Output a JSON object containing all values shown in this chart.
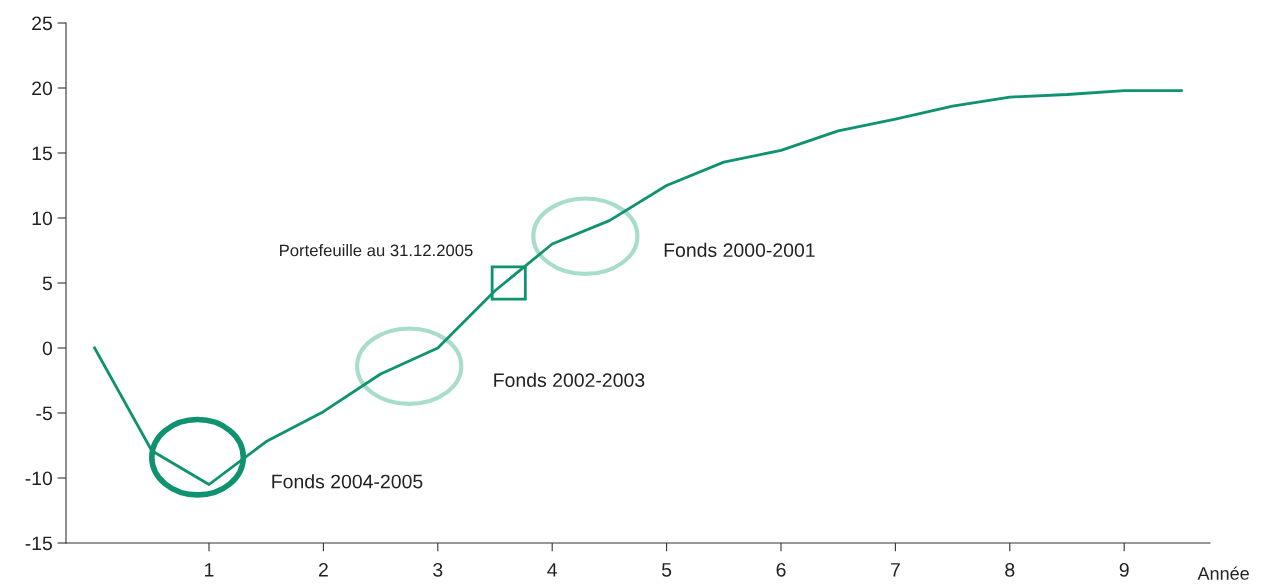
{
  "chart_data": {
    "type": "line",
    "xlabel": "Année",
    "x": [
      0,
      0.5,
      1,
      1.5,
      2,
      2.5,
      3,
      3.5,
      4,
      4.5,
      5,
      5.5,
      6,
      6.5,
      7,
      7.5,
      8,
      8.5,
      9,
      9.5
    ],
    "series": [
      {
        "color": "#0f9270",
        "values": [
          0,
          -7.9,
          -10.5,
          -7.2,
          -4.9,
          -2.0,
          0,
          4.4,
          8.0,
          9.8,
          12.5,
          14.3,
          15.2,
          16.7,
          17.6,
          18.6,
          19.3,
          19.5,
          19.8,
          19.8
        ]
      }
    ],
    "xlim": [
      -0.25,
      9.75
    ],
    "xticks": [
      1,
      2,
      3,
      4,
      5,
      6,
      7,
      8,
      9
    ],
    "ylim": [
      -15,
      25
    ],
    "yticks": [
      -15,
      -10,
      -5,
      0,
      5,
      10,
      15,
      20,
      25
    ],
    "grid": false,
    "legend": false,
    "marker": "none",
    "line_style": "solid",
    "annotations": [
      "Portefeuille au 31.12.2005",
      "Fonds 2004-2005",
      "Fonds 2002-2003",
      "Fonds 2000-2001"
    ]
  }
}
